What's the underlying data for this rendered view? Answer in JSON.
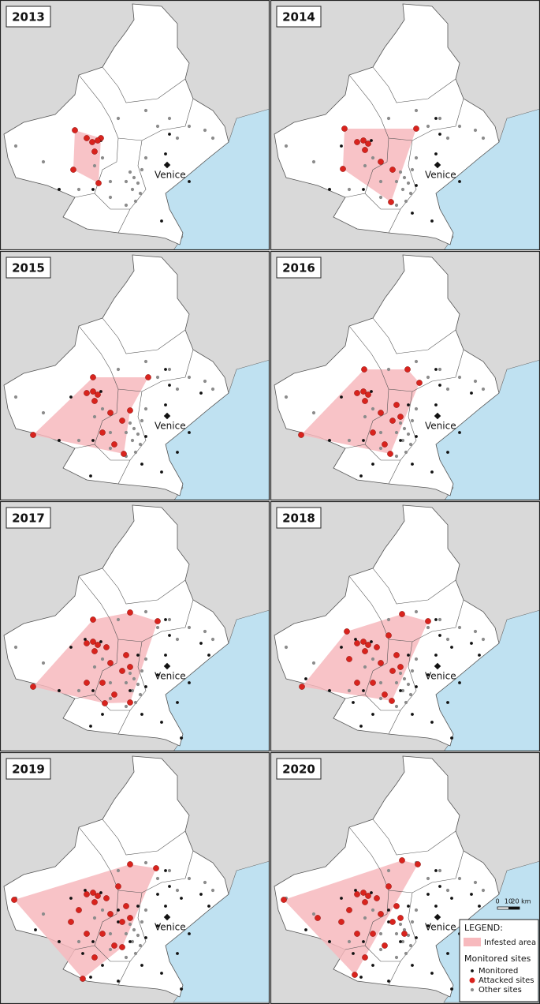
{
  "panels": [
    {
      "year": "2013"
    },
    {
      "year": "2014"
    },
    {
      "year": "2015"
    },
    {
      "year": "2016"
    },
    {
      "year": "2017"
    },
    {
      "year": "2018"
    },
    {
      "year": "2019"
    },
    {
      "year": "2020"
    }
  ],
  "city_label": "Venice",
  "scale_bar": {
    "labels": [
      "0",
      "10",
      "20 km"
    ]
  },
  "legend": {
    "title": "LEGEND:",
    "infested_area": "Infested area",
    "section_title": "Monitored sites",
    "items": [
      "Monitored",
      "Attacked sites",
      "Other sites"
    ]
  }
}
